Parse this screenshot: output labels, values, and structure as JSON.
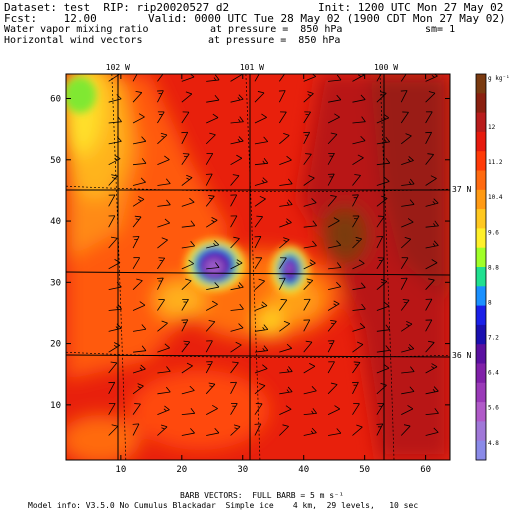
{
  "header": {
    "dataset": "Dataset: test  RIP: rip20020527 d2",
    "init": "Init: 1200 UTC Mon 27 May 02",
    "fcst": "Fcst:    12.00",
    "valid": "Valid: 0000 UTC Tue 28 May 02 (1900 CDT Mon 27 May 02)",
    "field1": "Water vapor mixing ratio",
    "field1_level": "at pressure =  850 hPa",
    "field1_units": "sm= 1",
    "field2": "Horizontal wind vectors",
    "field2_level": "at pressure =  850 hPa"
  },
  "footer": {
    "barb_note": "BARB VECTORS:  FULL BARB = 5 m s⁻¹",
    "model_info": "Model info: V3.5.0 No Cumulus Blackadar  Simple ice    4 km,  29 levels,   10 sec"
  },
  "chart_data": {
    "type": "heatmap",
    "title": "",
    "xlabel": "",
    "ylabel": "",
    "xlim": [
      1,
      64
    ],
    "ylim": [
      1,
      64
    ],
    "x_ticks": [
      10,
      20,
      30,
      40,
      50,
      60
    ],
    "y_ticks": [
      10,
      20,
      30,
      40,
      50,
      60
    ],
    "longitude_labels": [
      {
        "label": "102 W",
        "x": 9.5
      },
      {
        "label": "101 W",
        "x": 31.5
      },
      {
        "label": "100 W",
        "x": 53.5
      }
    ],
    "latitude_labels": [
      {
        "label": "37 N",
        "y": 45.2
      },
      {
        "label": "36 N",
        "y": 18.1
      }
    ],
    "colorbar": {
      "unit_label": "g kg⁻¹",
      "tick_labels": [
        "12",
        "11.2",
        "10.4",
        "9.6",
        "8.8",
        "8",
        "7.2",
        "6.4",
        "5.6",
        "4.8"
      ],
      "colors": [
        "#7a3a10",
        "#8a2010",
        "#b81c1c",
        "#e61a0e",
        "#ff3a08",
        "#ff6a10",
        "#ff9a14",
        "#ffc820",
        "#fff02a",
        "#a0ff28",
        "#20e090",
        "#1a90ff",
        "#1a20e8",
        "#1a10b0",
        "#5a10a0",
        "#8020a8",
        "#9a3ab8",
        "#b05ac8",
        "#a078d8",
        "#8a8ae8"
      ]
    },
    "grid": "lat/lon lines",
    "legend": "right colorbar"
  }
}
